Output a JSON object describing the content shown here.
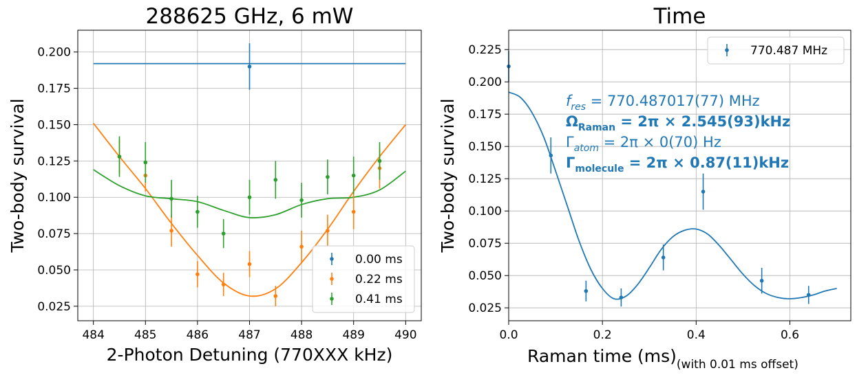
{
  "colors": {
    "c0": "#1f77b4",
    "c1": "#ff7f0e",
    "c2": "#2ca02c"
  },
  "chart_data": [
    {
      "type": "scatter",
      "title": "288625 GHz, 6 mW",
      "xlabel": "2-Photon Detuning (770XXX kHz)",
      "ylabel": "Two-body survival",
      "xlim": [
        483.7,
        490.3
      ],
      "ylim": [
        0.015,
        0.215
      ],
      "xticks": [
        484,
        485,
        486,
        487,
        488,
        489,
        490
      ],
      "xtick_labels": [
        "484",
        "485",
        "486",
        "487",
        "488",
        "489",
        "490"
      ],
      "yticks": [
        0.025,
        0.05,
        0.075,
        0.1,
        0.125,
        0.15,
        0.175,
        0.2
      ],
      "ytick_labels": [
        "0.025",
        "0.050",
        "0.075",
        "0.100",
        "0.125",
        "0.150",
        "0.175",
        "0.200"
      ],
      "grid": true,
      "legend_position": "lower-right",
      "series": [
        {
          "name": "0.00 ms",
          "color": "#1f77b4",
          "points": [
            {
              "x": 487.0,
              "y": 0.19,
              "err": 0.016
            }
          ],
          "fit": {
            "x": [
              484,
              490
            ],
            "y": [
              0.192,
              0.192
            ]
          }
        },
        {
          "name": "0.22 ms",
          "color": "#ff7f0e",
          "points": [
            {
              "x": 484.5,
              "y": 0.128,
              "err": 0.012
            },
            {
              "x": 485.0,
              "y": 0.115,
              "err": 0.011
            },
            {
              "x": 485.5,
              "y": 0.077,
              "err": 0.011
            },
            {
              "x": 486.0,
              "y": 0.047,
              "err": 0.009
            },
            {
              "x": 486.5,
              "y": 0.04,
              "err": 0.008
            },
            {
              "x": 487.0,
              "y": 0.054,
              "err": 0.009
            },
            {
              "x": 487.5,
              "y": 0.032,
              "err": 0.007
            },
            {
              "x": 488.0,
              "y": 0.066,
              "err": 0.011
            },
            {
              "x": 488.5,
              "y": 0.077,
              "err": 0.011
            },
            {
              "x": 489.0,
              "y": 0.09,
              "err": 0.012
            },
            {
              "x": 489.5,
              "y": 0.12,
              "err": 0.014
            }
          ],
          "fit": {
            "x": [
              484,
              484.5,
              485,
              485.5,
              486,
              486.5,
              487,
              487.5,
              488,
              488.5,
              489,
              489.5,
              490
            ],
            "y": [
              0.151,
              0.128,
              0.106,
              0.082,
              0.06,
              0.041,
              0.032,
              0.037,
              0.055,
              0.078,
              0.104,
              0.128,
              0.15
            ]
          }
        },
        {
          "name": "0.41 ms",
          "color": "#2ca02c",
          "points": [
            {
              "x": 484.5,
              "y": 0.128,
              "err": 0.014
            },
            {
              "x": 485.0,
              "y": 0.124,
              "err": 0.014
            },
            {
              "x": 485.5,
              "y": 0.099,
              "err": 0.013
            },
            {
              "x": 486.0,
              "y": 0.09,
              "err": 0.011
            },
            {
              "x": 486.5,
              "y": 0.075,
              "err": 0.01
            },
            {
              "x": 487.0,
              "y": 0.1,
              "err": 0.012
            },
            {
              "x": 487.5,
              "y": 0.112,
              "err": 0.013
            },
            {
              "x": 488.0,
              "y": 0.098,
              "err": 0.012
            },
            {
              "x": 488.5,
              "y": 0.114,
              "err": 0.012
            },
            {
              "x": 489.0,
              "y": 0.115,
              "err": 0.013
            },
            {
              "x": 489.5,
              "y": 0.125,
              "err": 0.013
            }
          ],
          "fit": {
            "x": [
              484,
              484.5,
              485,
              485.5,
              486,
              486.5,
              487,
              487.5,
              488,
              488.5,
              489,
              489.5,
              490
            ],
            "y": [
              0.119,
              0.108,
              0.101,
              0.099,
              0.097,
              0.091,
              0.086,
              0.088,
              0.095,
              0.099,
              0.1,
              0.105,
              0.118
            ]
          }
        }
      ]
    },
    {
      "type": "scatter",
      "title": "Time",
      "xlabel": "Raman time (ms)",
      "xlabel_suffix": "(with 0.01 ms offset)",
      "ylabel": "Two-body survival",
      "xlim": [
        0.0,
        0.73
      ],
      "ylim": [
        0.015,
        0.24
      ],
      "xticks": [
        0.0,
        0.2,
        0.4,
        0.6
      ],
      "xtick_labels": [
        "0.0",
        "0.2",
        "0.4",
        "0.6"
      ],
      "yticks": [
        0.025,
        0.05,
        0.075,
        0.1,
        0.125,
        0.15,
        0.175,
        0.2,
        0.225
      ],
      "ytick_labels": [
        "0.025",
        "0.050",
        "0.075",
        "0.100",
        "0.125",
        "0.150",
        "0.175",
        "0.200",
        "0.225"
      ],
      "grid": true,
      "legend_position": "top-right",
      "series": [
        {
          "name": "770.487 MHz",
          "color": "#1f77b4",
          "points": [
            {
              "x": 0.0,
              "y": 0.212,
              "err": 0.012
            },
            {
              "x": 0.09,
              "y": 0.143,
              "err": 0.014
            },
            {
              "x": 0.165,
              "y": 0.038,
              "err": 0.008
            },
            {
              "x": 0.24,
              "y": 0.033,
              "err": 0.007
            },
            {
              "x": 0.33,
              "y": 0.064,
              "err": 0.01
            },
            {
              "x": 0.415,
              "y": 0.115,
              "err": 0.014
            },
            {
              "x": 0.54,
              "y": 0.046,
              "err": 0.01
            },
            {
              "x": 0.64,
              "y": 0.035,
              "err": 0.007
            }
          ],
          "fit": {
            "x": [
              0,
              0.025,
              0.05,
              0.075,
              0.1,
              0.125,
              0.15,
              0.175,
              0.2,
              0.225,
              0.25,
              0.275,
              0.3,
              0.325,
              0.35,
              0.375,
              0.4,
              0.425,
              0.45,
              0.475,
              0.5,
              0.525,
              0.55,
              0.575,
              0.6,
              0.625,
              0.65,
              0.675,
              0.7
            ],
            "y": [
              0.192,
              0.188,
              0.176,
              0.157,
              0.131,
              0.104,
              0.077,
              0.055,
              0.04,
              0.032,
              0.034,
              0.043,
              0.056,
              0.07,
              0.08,
              0.085,
              0.086,
              0.082,
              0.073,
              0.062,
              0.051,
              0.042,
              0.036,
              0.033,
              0.032,
              0.033,
              0.035,
              0.038,
              0.04
            ]
          }
        }
      ],
      "annotations": {
        "line1_symbol": "f",
        "line1_sub": "res",
        "line1_value": " = 770.487017(77) MHz",
        "line2_symbol": "Ω",
        "line2_sub": "Raman",
        "line2_value": " = 2π × 2.545(93)kHz",
        "line3_symbol": "Γ",
        "line3_sub": "atom",
        "line3_value": " = 2π × 0(70) Hz",
        "line4_symbol": "Γ",
        "line4_sub": "molecule",
        "line4_value": " = 2π × 0.87(11)kHz"
      }
    }
  ]
}
